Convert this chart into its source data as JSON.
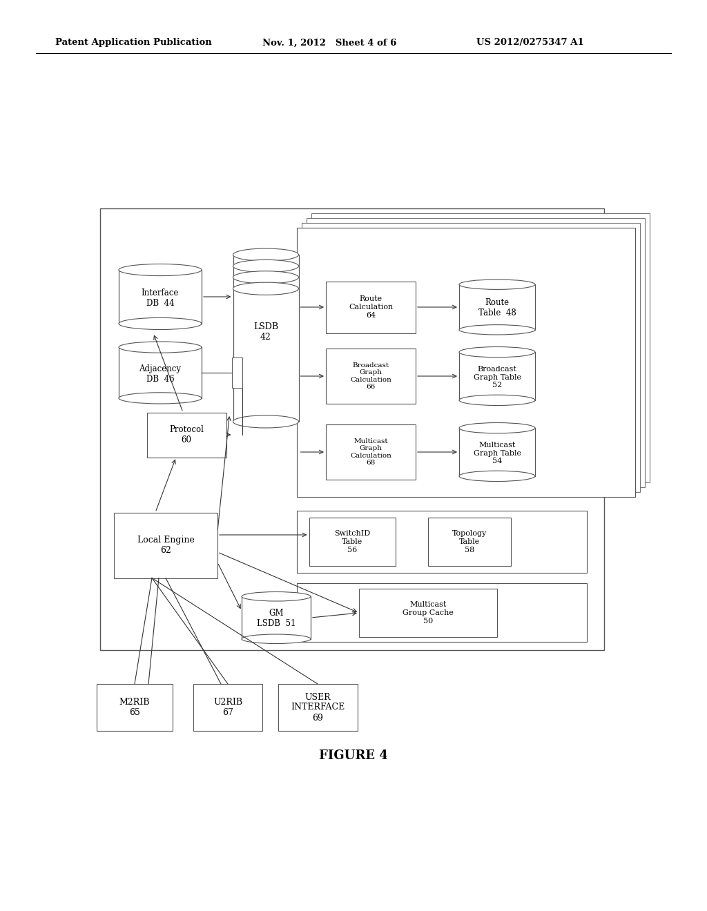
{
  "bg_color": "#ffffff",
  "header_left": "Patent Application Publication",
  "header_mid": "Nov. 1, 2012   Sheet 4 of 6",
  "header_right": "US 2012/0275347 A1",
  "figure_label": "FIGURE 4"
}
